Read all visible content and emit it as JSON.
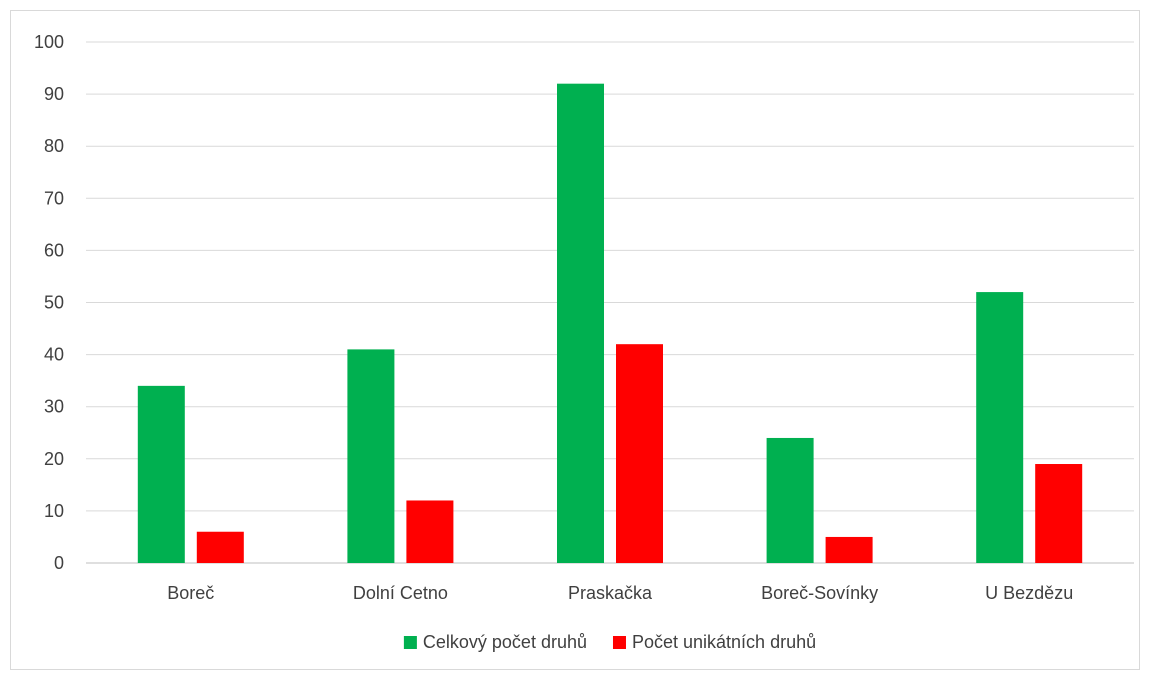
{
  "chart_data": {
    "type": "bar",
    "categories": [
      "Boreč",
      "Dolní Cetno",
      "Praskačka",
      "Boreč-Sovínky",
      "U Bezdězu"
    ],
    "series": [
      {
        "name": "Celkový počet druhů",
        "values": [
          34,
          41,
          92,
          24,
          52
        ],
        "color": "#00b050"
      },
      {
        "name": "Počet unikátních druhů",
        "values": [
          6,
          12,
          42,
          5,
          19
        ],
        "color": "#ff0000"
      }
    ],
    "ylim": [
      0,
      100
    ],
    "yticks": [
      0,
      10,
      20,
      30,
      40,
      50,
      60,
      70,
      80,
      90,
      100
    ],
    "grid": true,
    "legend_position": "bottom",
    "gridline_color": "#d9d9d9",
    "axis_color": "#bfbfbf",
    "text_color": "#404040"
  }
}
